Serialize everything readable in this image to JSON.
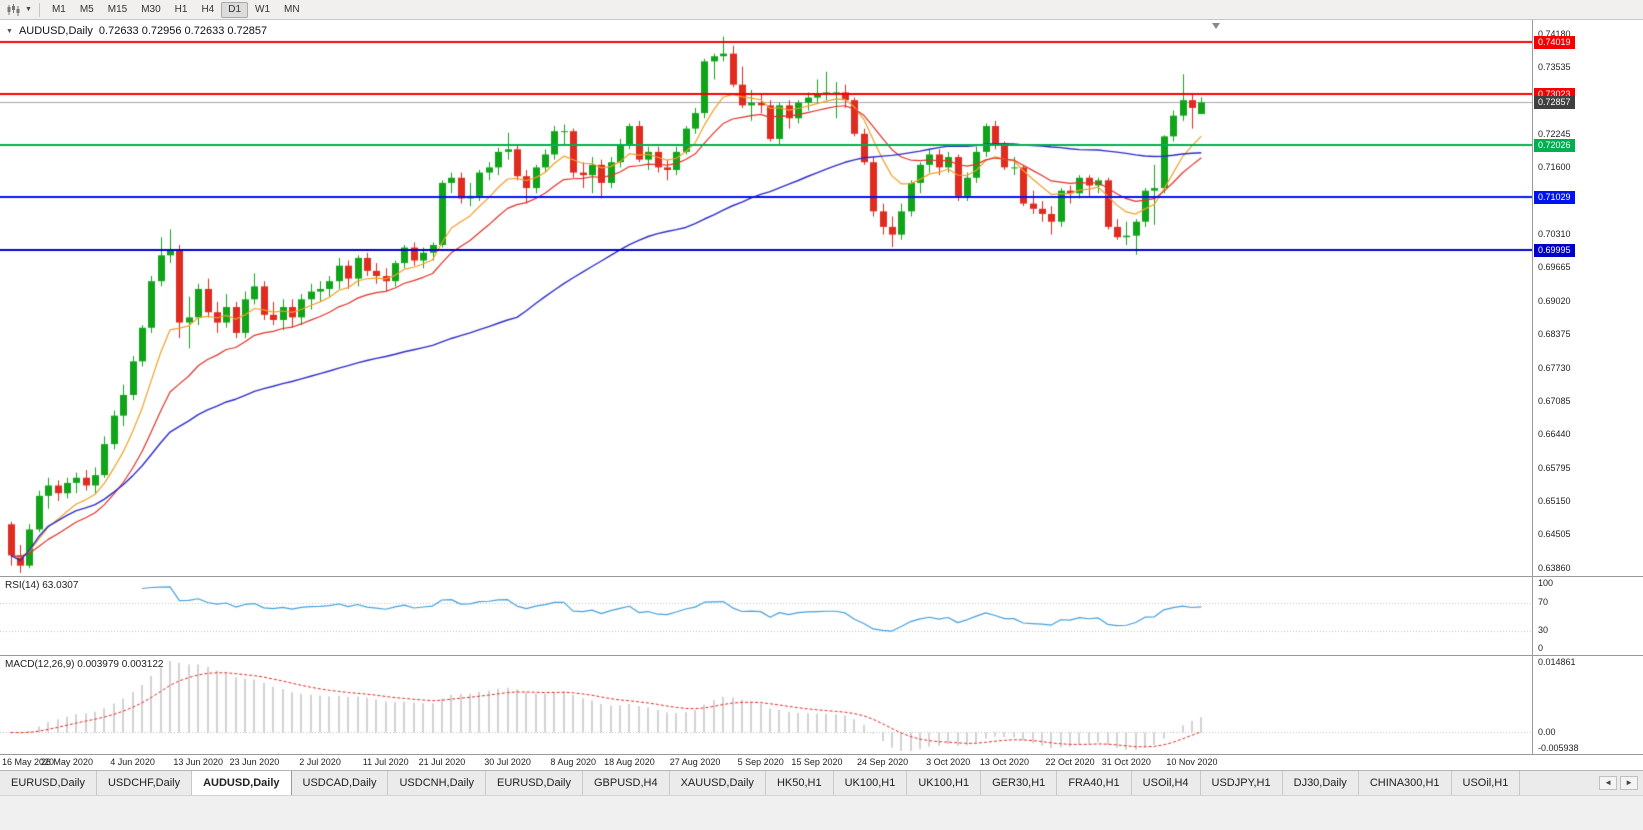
{
  "toolbar": {
    "chart_type_icon": "candlestick-chart-icon",
    "timeframes": [
      "M1",
      "M5",
      "M15",
      "M30",
      "H1",
      "H4",
      "D1",
      "W1",
      "MN"
    ],
    "active_timeframe": "D1"
  },
  "chart": {
    "title": {
      "symbol": "AUDUSD,Daily",
      "ohlc": "0.72633 0.72956 0.72633 0.72857"
    },
    "price_axis_labels": [
      "0.74180",
      "0.73535",
      "0.72890",
      "0.72245",
      "0.71600",
      "0.70955",
      "0.70310",
      "0.69665",
      "0.69020",
      "0.68375",
      "0.67730",
      "0.67085",
      "0.66440",
      "0.65795",
      "0.65150",
      "0.64505",
      "0.63860"
    ],
    "levels": [
      {
        "label": "0.74019",
        "price": 0.74019,
        "color": "#f50000"
      },
      {
        "label": "0.73023",
        "price": 0.73023,
        "color": "#f50000"
      },
      {
        "label": "0.72026",
        "price": 0.72026,
        "color": "#00b050"
      },
      {
        "label": "0.71029",
        "price": 0.71029,
        "color": "#0014f0"
      },
      {
        "label": "0.69995",
        "price": 0.69995,
        "color": "#0000c8"
      }
    ],
    "current_price": {
      "label": "0.72857",
      "price": 0.72857
    },
    "colors": {
      "bull": "#11a41b",
      "bear": "#e02b20",
      "ma_fast": "#f0a028",
      "ma_medium": "#e03328",
      "ma_slow": "#2d2dc8",
      "current_line": "#a8a8a8",
      "current_badge": "#3f3f3f",
      "grid_dotted": "#c0c0c0",
      "macd_hist": "#a8a8a8",
      "macd_signal": "#e02b20",
      "rsi_line": "#46a0dc"
    },
    "date_labels": [
      {
        "label": "16 May 2020",
        "i": 0
      },
      {
        "label": "26 May 2020",
        "i": 6
      },
      {
        "label": "4 Jun 2020",
        "i": 13
      },
      {
        "label": "13 Jun 2020",
        "i": 20
      },
      {
        "label": "23 Jun 2020",
        "i": 26
      },
      {
        "label": "2 Jul 2020",
        "i": 33
      },
      {
        "label": "11 Jul 2020",
        "i": 40
      },
      {
        "label": "21 Jul 2020",
        "i": 46
      },
      {
        "label": "30 Jul 2020",
        "i": 53
      },
      {
        "label": "8 Aug 2020",
        "i": 60
      },
      {
        "label": "18 Aug 2020",
        "i": 66
      },
      {
        "label": "27 Aug 2020",
        "i": 73
      },
      {
        "label": "5 Sep 2020",
        "i": 80
      },
      {
        "label": "15 Sep 2020",
        "i": 86
      },
      {
        "label": "24 Sep 2020",
        "i": 93
      },
      {
        "label": "3 Oct 2020",
        "i": 100
      },
      {
        "label": "13 Oct 2020",
        "i": 106
      },
      {
        "label": "22 Oct 2020",
        "i": 113
      },
      {
        "label": "31 Oct 2020",
        "i": 119
      },
      {
        "label": "10 Nov 2020",
        "i": 126
      }
    ]
  },
  "indicators": {
    "rsi": {
      "label": "RSI(14) 63.0307",
      "period": 14,
      "value": 63.0307,
      "axis_labels": [
        "100",
        "70",
        "30",
        "0"
      ],
      "level_lines": [
        70,
        30
      ]
    },
    "macd": {
      "label": "MACD(12,26,9) 0.003979 0.003122",
      "fast": 12,
      "slow": 26,
      "signal": 9,
      "value": 0.003979,
      "signal_value": 0.003122,
      "axis_labels": [
        "0.014861",
        "0.00",
        "-0.005938"
      ]
    }
  },
  "chart_data": {
    "type": "candlestick",
    "symbol": "AUDUSD",
    "timeframe": "Daily",
    "y_range": [
      0.637,
      0.7445
    ],
    "last_ohlc": {
      "open": 0.72633,
      "high": 0.72956,
      "low": 0.72633,
      "close": 0.72857
    },
    "overlays": [
      {
        "name": "ma-fast",
        "period": 8,
        "color": "#f0a028"
      },
      {
        "name": "ma-medium",
        "period": 16,
        "color": "#e03328"
      },
      {
        "name": "ma-slow",
        "period": 55,
        "color": "#2d2dc8"
      }
    ],
    "ohlc": [
      [
        0.647,
        0.6475,
        0.639,
        0.641
      ],
      [
        0.641,
        0.643,
        0.6376,
        0.639
      ],
      [
        0.639,
        0.647,
        0.6385,
        0.646
      ],
      [
        0.646,
        0.6535,
        0.6455,
        0.6525
      ],
      [
        0.6525,
        0.656,
        0.65,
        0.6545
      ],
      [
        0.6545,
        0.6555,
        0.6515,
        0.653
      ],
      [
        0.653,
        0.656,
        0.652,
        0.655
      ],
      [
        0.655,
        0.657,
        0.653,
        0.656
      ],
      [
        0.656,
        0.6575,
        0.6535,
        0.6545
      ],
      [
        0.6545,
        0.658,
        0.653,
        0.6565
      ],
      [
        0.6565,
        0.664,
        0.656,
        0.6625
      ],
      [
        0.6625,
        0.669,
        0.6615,
        0.668
      ],
      [
        0.668,
        0.674,
        0.666,
        0.672
      ],
      [
        0.672,
        0.6795,
        0.671,
        0.6785
      ],
      [
        0.6785,
        0.6855,
        0.6775,
        0.685
      ],
      [
        0.685,
        0.695,
        0.684,
        0.694
      ],
      [
        0.694,
        0.7025,
        0.693,
        0.699
      ],
      [
        0.699,
        0.704,
        0.6975,
        0.7
      ],
      [
        0.7,
        0.701,
        0.683,
        0.686
      ],
      [
        0.686,
        0.691,
        0.681,
        0.687
      ],
      [
        0.687,
        0.6935,
        0.6855,
        0.6925
      ],
      [
        0.6925,
        0.6945,
        0.687,
        0.688
      ],
      [
        0.688,
        0.69,
        0.684,
        0.686
      ],
      [
        0.686,
        0.6915,
        0.685,
        0.689
      ],
      [
        0.689,
        0.69,
        0.683,
        0.684
      ],
      [
        0.684,
        0.692,
        0.683,
        0.6905
      ],
      [
        0.6905,
        0.6955,
        0.6895,
        0.693
      ],
      [
        0.693,
        0.694,
        0.6865,
        0.6875
      ],
      [
        0.6875,
        0.69,
        0.6855,
        0.6865
      ],
      [
        0.6865,
        0.6905,
        0.6845,
        0.689
      ],
      [
        0.689,
        0.6905,
        0.685,
        0.687
      ],
      [
        0.687,
        0.6915,
        0.6855,
        0.6905
      ],
      [
        0.6905,
        0.6935,
        0.6885,
        0.692
      ],
      [
        0.692,
        0.694,
        0.69,
        0.6925
      ],
      [
        0.6925,
        0.695,
        0.691,
        0.694
      ],
      [
        0.694,
        0.6985,
        0.6925,
        0.697
      ],
      [
        0.697,
        0.698,
        0.6925,
        0.6945
      ],
      [
        0.6945,
        0.699,
        0.693,
        0.6985
      ],
      [
        0.6985,
        0.6995,
        0.695,
        0.696
      ],
      [
        0.696,
        0.6975,
        0.6935,
        0.695
      ],
      [
        0.695,
        0.6965,
        0.692,
        0.694
      ],
      [
        0.694,
        0.698,
        0.693,
        0.6975
      ],
      [
        0.6975,
        0.701,
        0.6965,
        0.7005
      ],
      [
        0.7005,
        0.7015,
        0.697,
        0.698
      ],
      [
        0.698,
        0.7005,
        0.6965,
        0.6995
      ],
      [
        0.6995,
        0.7015,
        0.698,
        0.701
      ],
      [
        0.701,
        0.7135,
        0.7005,
        0.713
      ],
      [
        0.713,
        0.715,
        0.711,
        0.714
      ],
      [
        0.714,
        0.715,
        0.709,
        0.71
      ],
      [
        0.71,
        0.713,
        0.7085,
        0.7105
      ],
      [
        0.7105,
        0.7155,
        0.7095,
        0.715
      ],
      [
        0.715,
        0.717,
        0.7135,
        0.716
      ],
      [
        0.716,
        0.7198,
        0.7145,
        0.719
      ],
      [
        0.719,
        0.7227,
        0.7175,
        0.7195
      ],
      [
        0.7195,
        0.7205,
        0.7135,
        0.7143
      ],
      [
        0.7143,
        0.7155,
        0.709,
        0.712
      ],
      [
        0.712,
        0.7165,
        0.711,
        0.716
      ],
      [
        0.716,
        0.7195,
        0.715,
        0.7185
      ],
      [
        0.7185,
        0.724,
        0.7175,
        0.723
      ],
      [
        0.723,
        0.7243,
        0.7205,
        0.723
      ],
      [
        0.723,
        0.7235,
        0.714,
        0.715
      ],
      [
        0.715,
        0.717,
        0.712,
        0.7145
      ],
      [
        0.7145,
        0.718,
        0.711,
        0.7165
      ],
      [
        0.7165,
        0.7175,
        0.71,
        0.713
      ],
      [
        0.713,
        0.718,
        0.712,
        0.717
      ],
      [
        0.717,
        0.7215,
        0.716,
        0.7205
      ],
      [
        0.7205,
        0.7245,
        0.7195,
        0.724
      ],
      [
        0.724,
        0.725,
        0.717,
        0.7175
      ],
      [
        0.7175,
        0.72,
        0.7155,
        0.719
      ],
      [
        0.719,
        0.72,
        0.715,
        0.716
      ],
      [
        0.716,
        0.7175,
        0.7135,
        0.7155
      ],
      [
        0.7155,
        0.72,
        0.7145,
        0.719
      ],
      [
        0.719,
        0.724,
        0.7185,
        0.7235
      ],
      [
        0.7235,
        0.7275,
        0.7225,
        0.7265
      ],
      [
        0.7265,
        0.737,
        0.7255,
        0.7365
      ],
      [
        0.7365,
        0.738,
        0.733,
        0.7375
      ],
      [
        0.7375,
        0.7413,
        0.7365,
        0.738
      ],
      [
        0.738,
        0.7395,
        0.7315,
        0.732
      ],
      [
        0.732,
        0.7355,
        0.7275,
        0.728
      ],
      [
        0.728,
        0.731,
        0.725,
        0.7285
      ],
      [
        0.7285,
        0.73,
        0.7265,
        0.728
      ],
      [
        0.728,
        0.729,
        0.721,
        0.7215
      ],
      [
        0.7215,
        0.7285,
        0.7205,
        0.728
      ],
      [
        0.728,
        0.729,
        0.7235,
        0.7255
      ],
      [
        0.7255,
        0.729,
        0.7245,
        0.7285
      ],
      [
        0.7285,
        0.7305,
        0.727,
        0.7295
      ],
      [
        0.7295,
        0.733,
        0.7285,
        0.73
      ],
      [
        0.73,
        0.7345,
        0.729,
        0.7305
      ],
      [
        0.7305,
        0.7325,
        0.7255,
        0.7305
      ],
      [
        0.7305,
        0.732,
        0.7275,
        0.729
      ],
      [
        0.729,
        0.7295,
        0.722,
        0.7225
      ],
      [
        0.7225,
        0.7235,
        0.7165,
        0.717
      ],
      [
        0.717,
        0.718,
        0.7065,
        0.7075
      ],
      [
        0.7075,
        0.709,
        0.703,
        0.7045
      ],
      [
        0.7045,
        0.7065,
        0.7006,
        0.703
      ],
      [
        0.703,
        0.709,
        0.702,
        0.7075
      ],
      [
        0.7075,
        0.7135,
        0.7065,
        0.713
      ],
      [
        0.713,
        0.717,
        0.711,
        0.7165
      ],
      [
        0.7165,
        0.7195,
        0.715,
        0.7185
      ],
      [
        0.7185,
        0.7195,
        0.7145,
        0.716
      ],
      [
        0.716,
        0.719,
        0.715,
        0.718
      ],
      [
        0.718,
        0.7185,
        0.7095,
        0.7105
      ],
      [
        0.7105,
        0.715,
        0.7095,
        0.714
      ],
      [
        0.714,
        0.72,
        0.713,
        0.719
      ],
      [
        0.719,
        0.7245,
        0.718,
        0.724
      ],
      [
        0.724,
        0.725,
        0.7195,
        0.7205
      ],
      [
        0.7205,
        0.721,
        0.7155,
        0.716
      ],
      [
        0.716,
        0.718,
        0.7145,
        0.716
      ],
      [
        0.716,
        0.7165,
        0.7085,
        0.709
      ],
      [
        0.709,
        0.7115,
        0.707,
        0.708
      ],
      [
        0.708,
        0.7095,
        0.7055,
        0.707
      ],
      [
        0.707,
        0.7085,
        0.703,
        0.7055
      ],
      [
        0.7055,
        0.712,
        0.7045,
        0.7115
      ],
      [
        0.7115,
        0.7125,
        0.709,
        0.711
      ],
      [
        0.711,
        0.7145,
        0.71,
        0.714
      ],
      [
        0.714,
        0.7145,
        0.7105,
        0.7125
      ],
      [
        0.7125,
        0.714,
        0.711,
        0.7135
      ],
      [
        0.7135,
        0.714,
        0.704,
        0.7045
      ],
      [
        0.7045,
        0.706,
        0.702,
        0.7025
      ],
      [
        0.7025,
        0.7055,
        0.701,
        0.7028
      ],
      [
        0.7028,
        0.706,
        0.6991,
        0.7055
      ],
      [
        0.7055,
        0.712,
        0.7045,
        0.7115
      ],
      [
        0.7115,
        0.7165,
        0.7049,
        0.712
      ],
      [
        0.712,
        0.7222,
        0.711,
        0.722
      ],
      [
        0.722,
        0.727,
        0.721,
        0.726
      ],
      [
        0.726,
        0.734,
        0.725,
        0.729
      ],
      [
        0.729,
        0.73,
        0.7235,
        0.7275
      ],
      [
        0.72633,
        0.72956,
        0.72633,
        0.72857
      ]
    ]
  },
  "tabs": [
    {
      "label": "EURUSD,Daily",
      "active": false
    },
    {
      "label": "USDCHF,Daily",
      "active": false
    },
    {
      "label": "AUDUSD,Daily",
      "active": true
    },
    {
      "label": "USDCAD,Daily",
      "active": false
    },
    {
      "label": "USDCNH,Daily",
      "active": false
    },
    {
      "label": "EURUSD,Daily",
      "active": false
    },
    {
      "label": "GBPUSD,H4",
      "active": false
    },
    {
      "label": "XAUUSD,Daily",
      "active": false
    },
    {
      "label": "HK50,H1",
      "active": false
    },
    {
      "label": "UK100,H1",
      "active": false
    },
    {
      "label": "UK100,H1",
      "active": false
    },
    {
      "label": "GER30,H1",
      "active": false
    },
    {
      "label": "FRA40,H1",
      "active": false
    },
    {
      "label": "USOil,H4",
      "active": false
    },
    {
      "label": "USDJPY,H1",
      "active": false
    },
    {
      "label": "DJ30,Daily",
      "active": false
    },
    {
      "label": "CHINA300,H1",
      "active": false
    },
    {
      "label": "USOil,H1",
      "active": false
    }
  ],
  "tabs_nav": {
    "left": "◄",
    "right": "►"
  }
}
